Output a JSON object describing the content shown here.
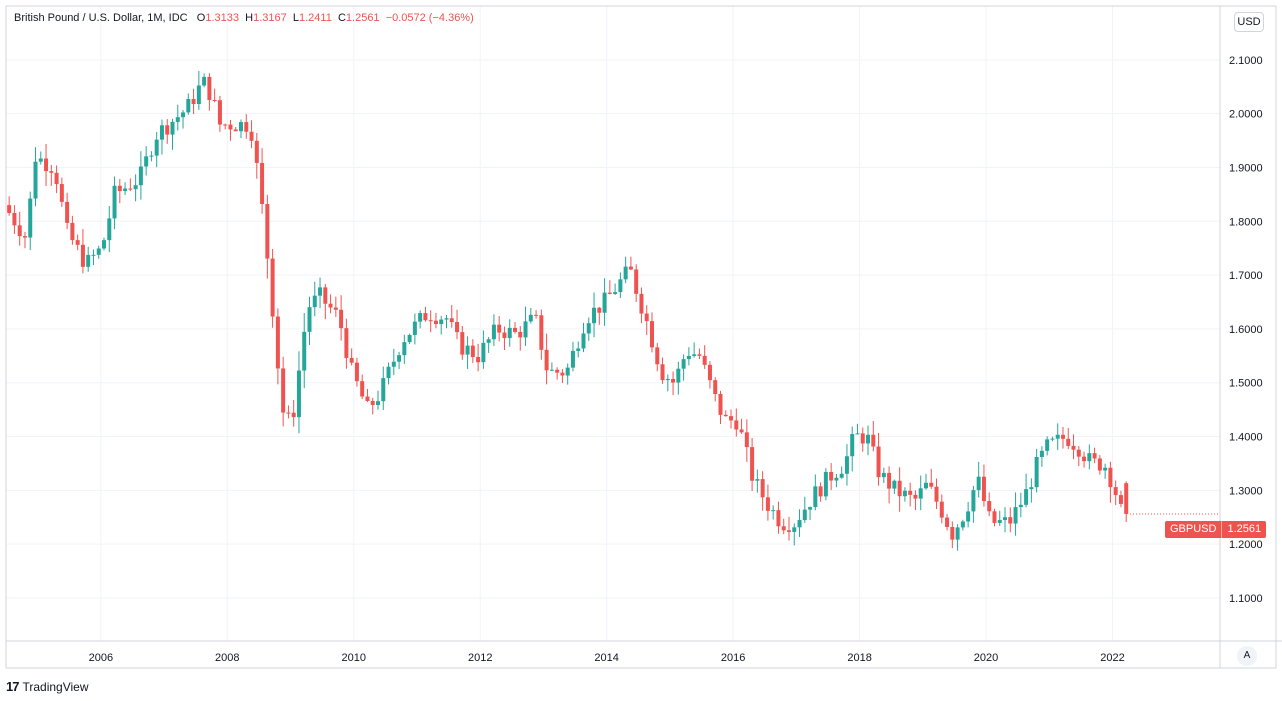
{
  "legend": {
    "symbol": "British Pound / U.S. Dollar, 1M, IDC",
    "o_label": "O",
    "o_value": "1.3133",
    "h_label": "H",
    "h_value": "1.3167",
    "l_label": "L",
    "l_value": "1.2411",
    "c_label": "C",
    "c_value": "1.2561",
    "change": "−0.0572 (−4.36%)"
  },
  "currency": "USD",
  "auto_button": "A",
  "price_label": {
    "symbol": "GBPUSD",
    "value": "1.2561"
  },
  "footer": {
    "logo": "17",
    "brand": "TradingView"
  },
  "colors": {
    "up": "#26a69a",
    "down": "#ef5350",
    "grid": "#f0f3fa",
    "axis": "#d1d4dc"
  },
  "chart_data": {
    "type": "candlestick",
    "title": "British Pound / U.S. Dollar, 1M, IDC",
    "interval": "1M",
    "xlabel": "",
    "ylabel": "USD",
    "ylim": [
      1.02,
      2.2
    ],
    "yticks": [
      "2.1000",
      "2.0000",
      "1.9000",
      "1.8000",
      "1.7000",
      "1.6000",
      "1.5000",
      "1.4000",
      "1.3000",
      "1.2000",
      "1.1000"
    ],
    "xticks": [
      "2006",
      "2008",
      "2010",
      "2012",
      "2014",
      "2016",
      "2018",
      "2020",
      "2022"
    ],
    "xlim": [
      2004.55,
      2023.75
    ],
    "up_color": "#26a69a",
    "down_color": "#ef5350",
    "series": [
      {
        "name": "GBPUSD",
        "anchors": [
          [
            2004.6,
            1.83
          ],
          [
            2004.95,
            1.77
          ],
          [
            2005.1,
            1.92
          ],
          [
            2005.4,
            1.9
          ],
          [
            2005.6,
            1.78
          ],
          [
            2005.9,
            1.72
          ],
          [
            2006.15,
            1.75
          ],
          [
            2006.35,
            1.85
          ],
          [
            2006.75,
            1.88
          ],
          [
            2007.0,
            1.96
          ],
          [
            2007.5,
            2.01
          ],
          [
            2007.75,
            2.06
          ],
          [
            2007.9,
            2.03
          ],
          [
            2008.0,
            1.98
          ],
          [
            2008.5,
            1.98
          ],
          [
            2008.65,
            1.86
          ],
          [
            2008.8,
            1.7
          ],
          [
            2009.0,
            1.45
          ],
          [
            2009.15,
            1.42
          ],
          [
            2009.4,
            1.64
          ],
          [
            2009.6,
            1.66
          ],
          [
            2009.9,
            1.62
          ],
          [
            2010.1,
            1.52
          ],
          [
            2010.35,
            1.45
          ],
          [
            2010.55,
            1.48
          ],
          [
            2010.9,
            1.58
          ],
          [
            2011.3,
            1.63
          ],
          [
            2011.6,
            1.62
          ],
          [
            2011.8,
            1.57
          ],
          [
            2012.1,
            1.55
          ],
          [
            2012.4,
            1.6
          ],
          [
            2012.7,
            1.59
          ],
          [
            2013.0,
            1.62
          ],
          [
            2013.2,
            1.52
          ],
          [
            2013.5,
            1.52
          ],
          [
            2013.8,
            1.62
          ],
          [
            2014.1,
            1.65
          ],
          [
            2014.5,
            1.71
          ],
          [
            2014.75,
            1.62
          ],
          [
            2015.0,
            1.52
          ],
          [
            2015.2,
            1.5
          ],
          [
            2015.4,
            1.56
          ],
          [
            2015.6,
            1.55
          ],
          [
            2015.85,
            1.47
          ],
          [
            2016.0,
            1.43
          ],
          [
            2016.2,
            1.43
          ],
          [
            2016.45,
            1.32
          ],
          [
            2016.7,
            1.27
          ],
          [
            2016.9,
            1.24
          ],
          [
            2017.1,
            1.24
          ],
          [
            2017.4,
            1.29
          ],
          [
            2017.7,
            1.33
          ],
          [
            2017.9,
            1.35
          ],
          [
            2018.05,
            1.4
          ],
          [
            2018.25,
            1.4
          ],
          [
            2018.45,
            1.33
          ],
          [
            2018.7,
            1.3
          ],
          [
            2019.0,
            1.28
          ],
          [
            2019.2,
            1.31
          ],
          [
            2019.4,
            1.27
          ],
          [
            2019.6,
            1.22
          ],
          [
            2019.8,
            1.26
          ],
          [
            2020.0,
            1.32
          ],
          [
            2020.2,
            1.24
          ],
          [
            2020.5,
            1.24
          ],
          [
            2020.75,
            1.29
          ],
          [
            2020.95,
            1.35
          ],
          [
            2021.1,
            1.38
          ],
          [
            2021.4,
            1.4
          ],
          [
            2021.6,
            1.38
          ],
          [
            2021.8,
            1.35
          ],
          [
            2022.0,
            1.35
          ],
          [
            2022.15,
            1.31
          ],
          [
            2022.28,
            1.2561
          ]
        ]
      }
    ],
    "last_candle": {
      "open": 1.3133,
      "high": 1.3167,
      "low": 1.2411,
      "close": 1.2561
    },
    "last_price": 1.2561
  }
}
